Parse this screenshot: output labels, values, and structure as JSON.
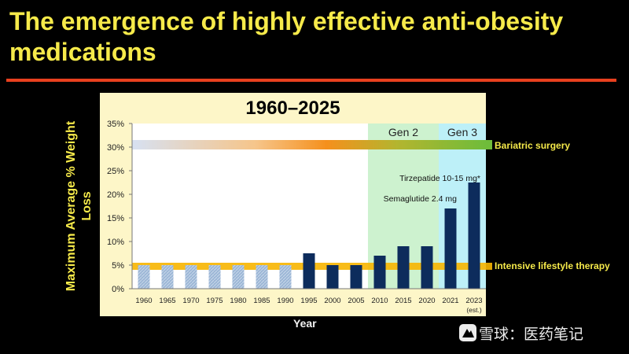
{
  "slide": {
    "title": "The emergence of highly effective anti-obesity medications",
    "watermark": "雪球：医药笔记"
  },
  "colors": {
    "background": "#000000",
    "title": "#f6ea4a",
    "rule": "#e8401e",
    "panel": "#fdf6c8",
    "lifestyle_bars": "#9cb6d6",
    "drug_bars": "#0d2c5c",
    "gen2_region": "#cdf2cf",
    "gen3_region": "#bdf0f8",
    "lifestyle_band": "#f7b500",
    "surgery_band_end": "#6fbc3a"
  },
  "chart_data": {
    "type": "bar",
    "title": "1960–2025",
    "xlabel": "Year",
    "ylabel": "Maximum Average % Weight Loss",
    "ylim": [
      0,
      35
    ],
    "yticks": [
      "0%",
      "5%",
      "10%",
      "15%",
      "20%",
      "25%",
      "30%",
      "35%"
    ],
    "grid": false,
    "categories": [
      "1960",
      "1965",
      "1970",
      "1975",
      "1980",
      "1985",
      "1990",
      "1995",
      "2000",
      "2005",
      "2010",
      "2015",
      "2020",
      "2021",
      "2023"
    ],
    "category_notes": [
      {
        "category": "2023",
        "note": "(est.)"
      }
    ],
    "values": [
      5,
      5,
      5,
      5,
      5,
      5,
      5,
      7.5,
      5,
      5,
      7,
      9,
      9,
      17,
      22.5
    ],
    "bar_style": [
      "lifestyle",
      "lifestyle",
      "lifestyle",
      "lifestyle",
      "lifestyle",
      "lifestyle",
      "lifestyle",
      "drug",
      "drug",
      "drug",
      "drug",
      "drug",
      "drug",
      "drug",
      "drug"
    ],
    "regions": [
      {
        "label": "Gen 2",
        "from": "2010",
        "to": "2020"
      },
      {
        "label": "Gen 3",
        "from": "2021",
        "to": "2023"
      }
    ],
    "reference_bands": [
      {
        "label": "Bariatric surgery",
        "y_range": [
          29.5,
          31.5
        ]
      },
      {
        "label": "Intensive lifestyle therapy",
        "y_range": [
          4,
          5.5
        ]
      }
    ],
    "annotations": [
      {
        "text": "Tirzepatide 10-15 mg*",
        "category": "2023"
      },
      {
        "text": "Semaglutide 2.4 mg",
        "category": "2021"
      }
    ]
  }
}
